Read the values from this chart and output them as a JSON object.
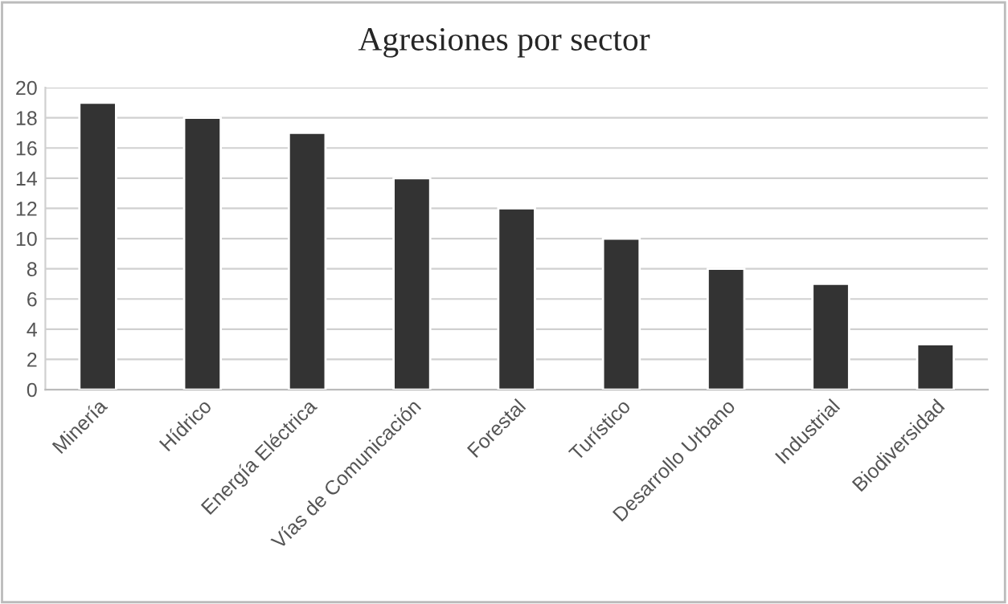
{
  "chart_data": {
    "type": "bar",
    "title": "Agresiones por sector",
    "categories": [
      "Minería",
      "Hídrico",
      "Energía Eléctrica",
      "Vías de Comunicación",
      "Forestal",
      "Turístico",
      "Desarrollo Urbano",
      "Industrial",
      "Biodiversidad"
    ],
    "values": [
      19,
      18,
      17,
      14,
      12,
      10,
      8,
      7,
      3
    ],
    "color": "#333333",
    "ylim": [
      0,
      20
    ],
    "yticks": [
      0,
      2,
      4,
      6,
      8,
      10,
      12,
      14,
      16,
      18,
      20
    ],
    "grid": "y"
  }
}
